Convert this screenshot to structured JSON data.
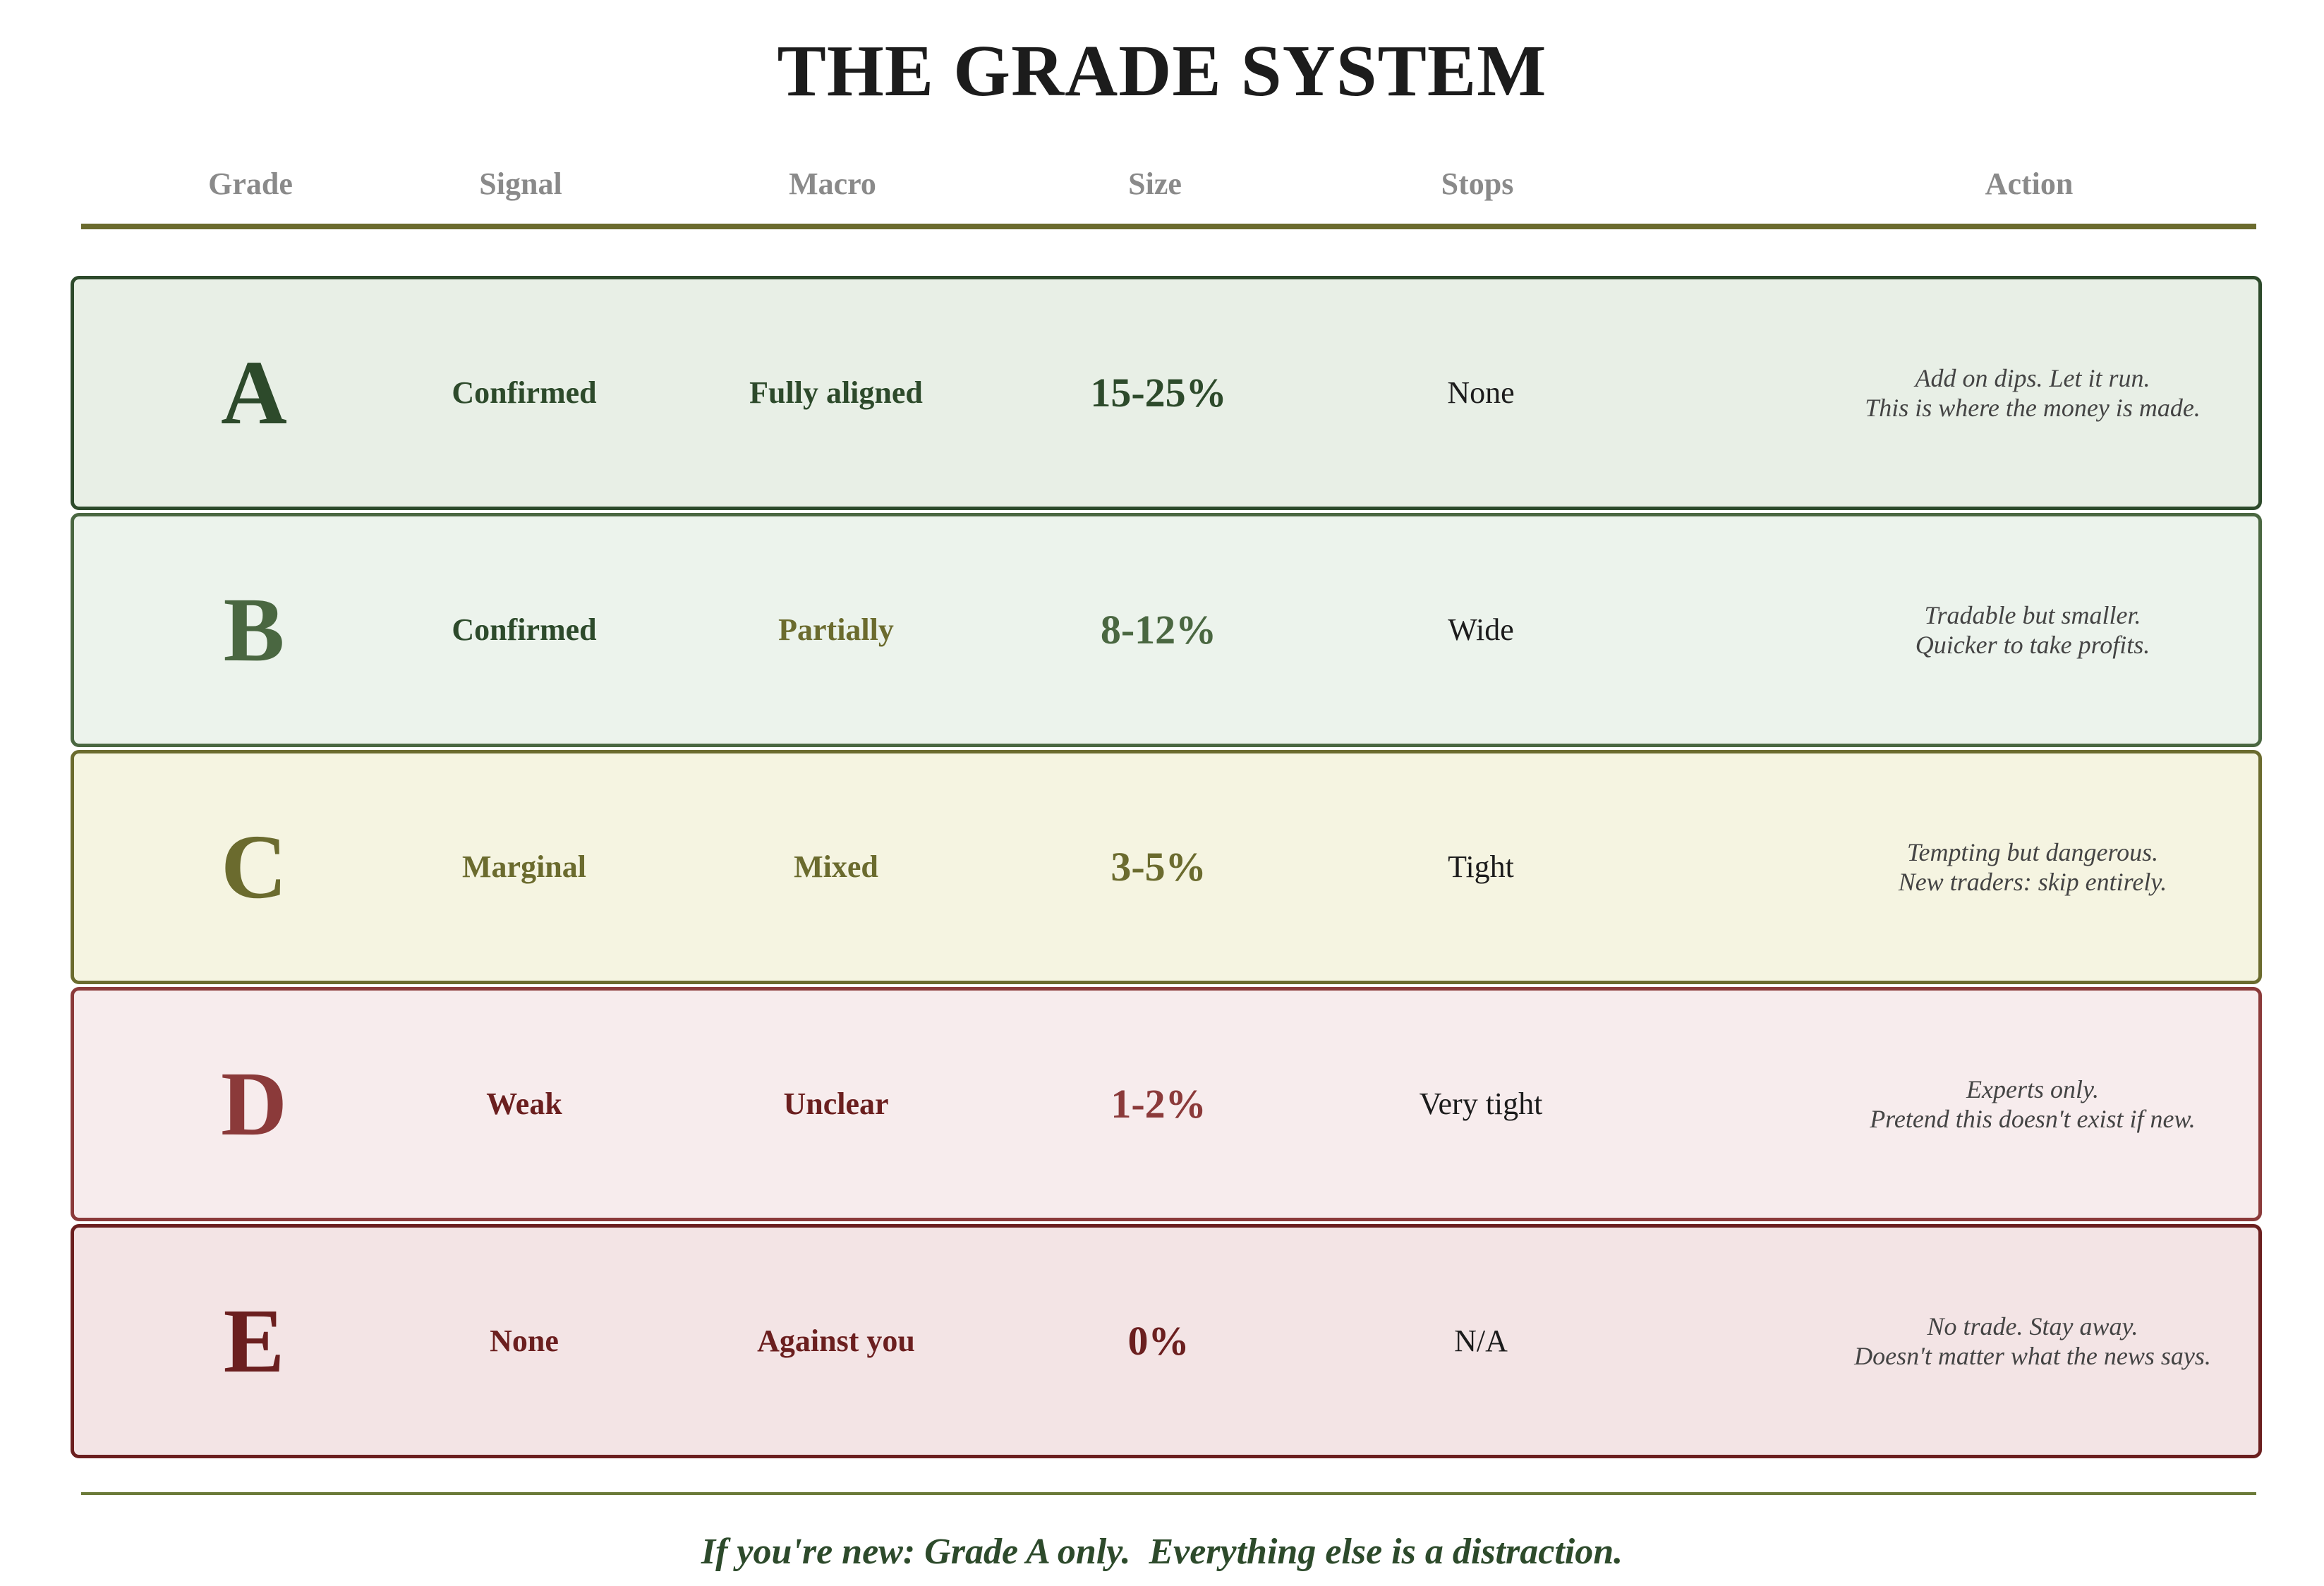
{
  "title": "THE GRADE SYSTEM",
  "headers": {
    "grade": "Grade",
    "signal": "Signal",
    "macro": "Macro",
    "size": "Size",
    "stops": "Stops",
    "action": "Action"
  },
  "rows": [
    {
      "grade": "A",
      "signal": "Confirmed",
      "macro": "Fully aligned",
      "size": "15-25%",
      "stops": "None",
      "action_line1": "Add on dips. Let it run.",
      "action_line2": "This is where the money is made.",
      "colors": {
        "background": "#e8efe6",
        "border": "#2d4a2b",
        "letter": "#2d4a2b",
        "signal": "#2d4a2b",
        "macro": "#2d4a2b",
        "size": "#2d4a2b"
      }
    },
    {
      "grade": "B",
      "signal": "Confirmed",
      "macro": "Partially",
      "size": "8-12%",
      "stops": "Wide",
      "action_line1": "Tradable but smaller.",
      "action_line2": "Quicker to take profits.",
      "colors": {
        "background": "#ecf3ec",
        "border": "#4a6741",
        "letter": "#4a6741",
        "signal": "#2d4a2b",
        "macro": "#6b6b2e",
        "size": "#4a6741"
      }
    },
    {
      "grade": "C",
      "signal": "Marginal",
      "macro": "Mixed",
      "size": "3-5%",
      "stops": "Tight",
      "action_line1": "Tempting but dangerous.",
      "action_line2": "New traders: skip entirely.",
      "colors": {
        "background": "#f5f4e1",
        "border": "#6b6b2e",
        "letter": "#6b6b2e",
        "signal": "#6b6b2e",
        "macro": "#6b6b2e",
        "size": "#6b6b2e"
      }
    },
    {
      "grade": "D",
      "signal": "Weak",
      "macro": "Unclear",
      "size": "1-2%",
      "stops": "Very tight",
      "action_line1": "Experts only.",
      "action_line2": "Pretend this doesn't exist if new.",
      "colors": {
        "background": "#f7eced",
        "border": "#8b3a3a",
        "letter": "#8b3a3a",
        "signal": "#6b1f1f",
        "macro": "#6b1f1f",
        "size": "#8b3a3a"
      }
    },
    {
      "grade": "E",
      "signal": "None",
      "macro": "Against you",
      "size": "0%",
      "stops": "N/A",
      "action_line1": "No trade. Stay away.",
      "action_line2": "Doesn't matter what the news says.",
      "colors": {
        "background": "#f3e4e5",
        "border": "#6b1f1f",
        "letter": "#6b1f1f",
        "signal": "#6b1f1f",
        "macro": "#6b1f1f",
        "size": "#6b1f1f"
      }
    }
  ],
  "footer": "If you're new: Grade A only.  Everything else is a distraction.",
  "colors": {
    "title": "#1c1c1c",
    "header_text": "#8a8a8a",
    "rule": "#6b6b2e",
    "footer_text": "#2d4a2b"
  }
}
